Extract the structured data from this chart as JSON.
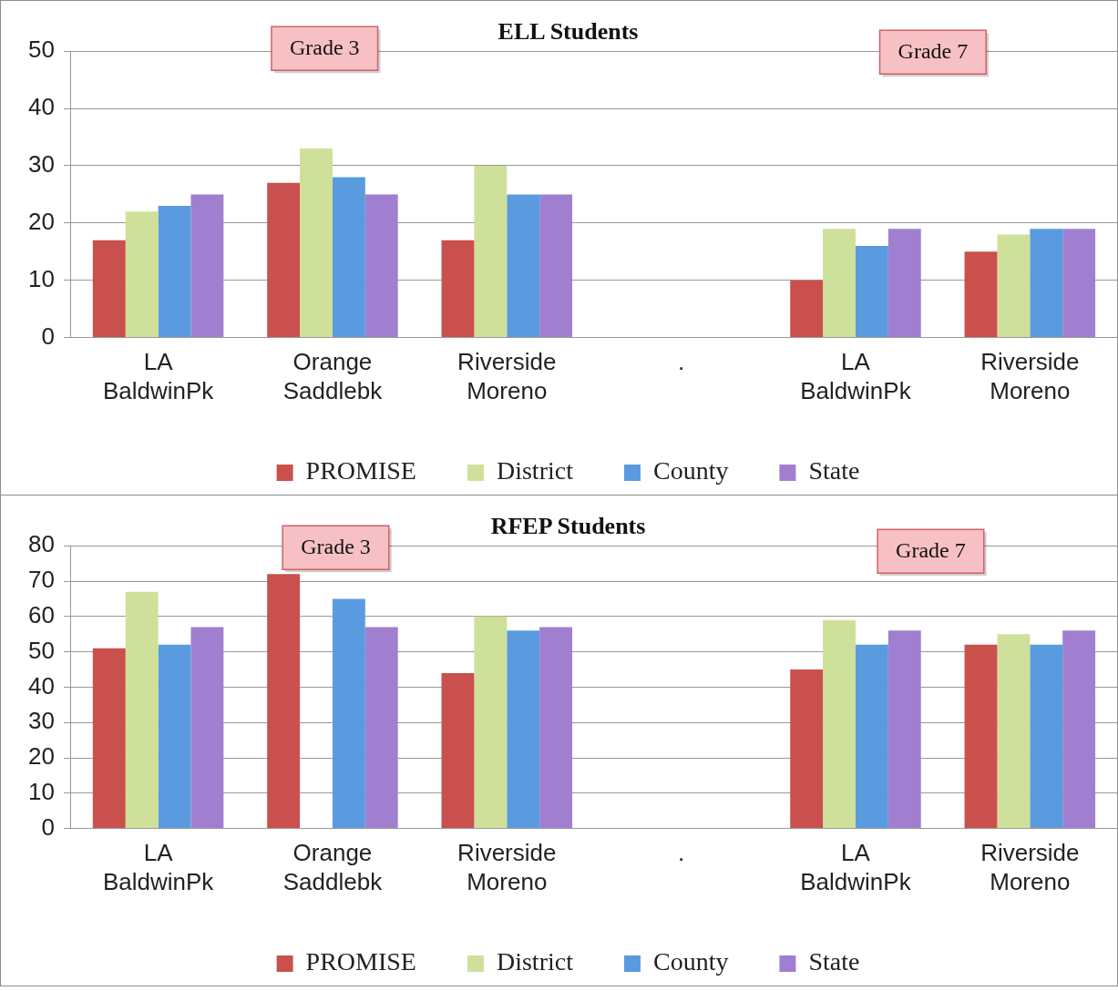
{
  "chart_data": [
    {
      "type": "bar",
      "title": "ELL Students",
      "categories": [
        "LA BaldwinPk",
        "Orange Saddlebk",
        "Riverside Moreno",
        ".",
        "LA BaldwinPk",
        "Riverside Moreno"
      ],
      "series": [
        {
          "name": "PROMISE",
          "color": "#c9504d",
          "values": [
            17,
            27,
            17,
            null,
            10,
            15
          ]
        },
        {
          "name": "District",
          "color": "#cfe09a",
          "values": [
            22,
            33,
            30,
            null,
            19,
            18
          ]
        },
        {
          "name": "County",
          "color": "#5a9be0",
          "values": [
            23,
            28,
            25,
            null,
            16,
            19
          ]
        },
        {
          "name": "State",
          "color": "#a07fd0",
          "values": [
            25,
            25,
            25,
            null,
            19,
            19
          ]
        }
      ],
      "ylim": [
        0,
        50
      ],
      "yticks": [
        0,
        10,
        20,
        30,
        40,
        50
      ],
      "grid": "y",
      "legend": "bottom",
      "annotations": [
        "Grade 3",
        "Grade 7"
      ]
    },
    {
      "type": "bar",
      "title": "RFEP Students",
      "categories": [
        "LA BaldwinPk",
        "Orange Saddlebk",
        "Riverside Moreno",
        ".",
        "LA BaldwinPk",
        "Riverside Moreno"
      ],
      "series": [
        {
          "name": "PROMISE",
          "color": "#c9504d",
          "values": [
            51,
            72,
            44,
            null,
            45,
            52
          ]
        },
        {
          "name": "District",
          "color": "#cfe09a",
          "values": [
            67,
            null,
            60,
            null,
            59,
            55
          ]
        },
        {
          "name": "County",
          "color": "#5a9be0",
          "values": [
            52,
            65,
            56,
            null,
            52,
            52
          ]
        },
        {
          "name": "State",
          "color": "#a07fd0",
          "values": [
            57,
            57,
            57,
            null,
            56,
            56
          ]
        }
      ],
      "ylim": [
        0,
        80
      ],
      "yticks": [
        0,
        10,
        20,
        30,
        40,
        50,
        60,
        70,
        80
      ],
      "grid": "y",
      "legend": "bottom",
      "annotations": [
        "Grade 3",
        "Grade 7"
      ]
    }
  ]
}
